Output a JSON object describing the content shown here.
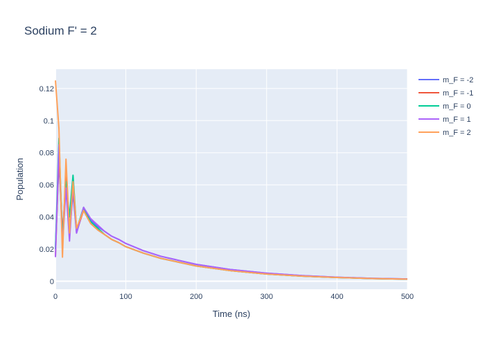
{
  "chart_data": {
    "type": "line",
    "title": "Sodium F' = 2",
    "xlabel": "Time (ns)",
    "ylabel": "Population",
    "xlim": [
      0,
      500
    ],
    "ylim": [
      -0.005,
      0.132
    ],
    "xticks": [
      0,
      100,
      200,
      300,
      400,
      500
    ],
    "xtick_labels": [
      "0",
      "100",
      "200",
      "300",
      "400",
      "500"
    ],
    "yticks": [
      0,
      0.02,
      0.04,
      0.06,
      0.08,
      0.1,
      0.12
    ],
    "ytick_labels": [
      "0",
      "0.02",
      "0.04",
      "0.06",
      "0.08",
      "0.1",
      "0.12"
    ],
    "grid": true,
    "legend_position": "top-right",
    "x": [
      0,
      5,
      10,
      15,
      20,
      25,
      30,
      40,
      50,
      60,
      70,
      80,
      90,
      100,
      125,
      150,
      200,
      250,
      300,
      350,
      400,
      450,
      500
    ],
    "series": [
      {
        "name": "m_F = -2",
        "color": "#636efa",
        "values": [
          0.02,
          0.075,
          0.03,
          0.06,
          0.03,
          0.055,
          0.03,
          0.045,
          0.038,
          0.034,
          0.031,
          0.028,
          0.026,
          0.0235,
          0.019,
          0.0155,
          0.0105,
          0.0072,
          0.005,
          0.0035,
          0.0025,
          0.0018,
          0.0014
        ]
      },
      {
        "name": "m_F = -1",
        "color": "#ef553b",
        "values": [
          0.015,
          0.08,
          0.028,
          0.065,
          0.032,
          0.058,
          0.031,
          0.044,
          0.036,
          0.032,
          0.029,
          0.026,
          0.024,
          0.0215,
          0.0175,
          0.0142,
          0.0095,
          0.0065,
          0.0045,
          0.0032,
          0.0023,
          0.0017,
          0.0013
        ]
      },
      {
        "name": "m_F = 0",
        "color": "#00cc96",
        "values": [
          0.02,
          0.089,
          0.025,
          0.062,
          0.04,
          0.066,
          0.032,
          0.046,
          0.037,
          0.033,
          0.029,
          0.026,
          0.024,
          0.0215,
          0.0175,
          0.0142,
          0.0095,
          0.0065,
          0.0045,
          0.0032,
          0.0023,
          0.0017,
          0.0013
        ]
      },
      {
        "name": "m_F = 1",
        "color": "#ab63fa",
        "values": [
          0.015,
          0.085,
          0.022,
          0.058,
          0.025,
          0.06,
          0.03,
          0.046,
          0.039,
          0.035,
          0.031,
          0.028,
          0.026,
          0.0235,
          0.019,
          0.0155,
          0.0105,
          0.0072,
          0.005,
          0.0035,
          0.0025,
          0.0018,
          0.0014
        ]
      },
      {
        "name": "m_F = 2",
        "color": "#ffa15a",
        "values": [
          0.125,
          0.095,
          0.015,
          0.076,
          0.03,
          0.062,
          0.033,
          0.044,
          0.036,
          0.032,
          0.029,
          0.026,
          0.024,
          0.0215,
          0.0175,
          0.0142,
          0.0095,
          0.0065,
          0.0045,
          0.0032,
          0.0023,
          0.0017,
          0.0013
        ]
      }
    ]
  }
}
